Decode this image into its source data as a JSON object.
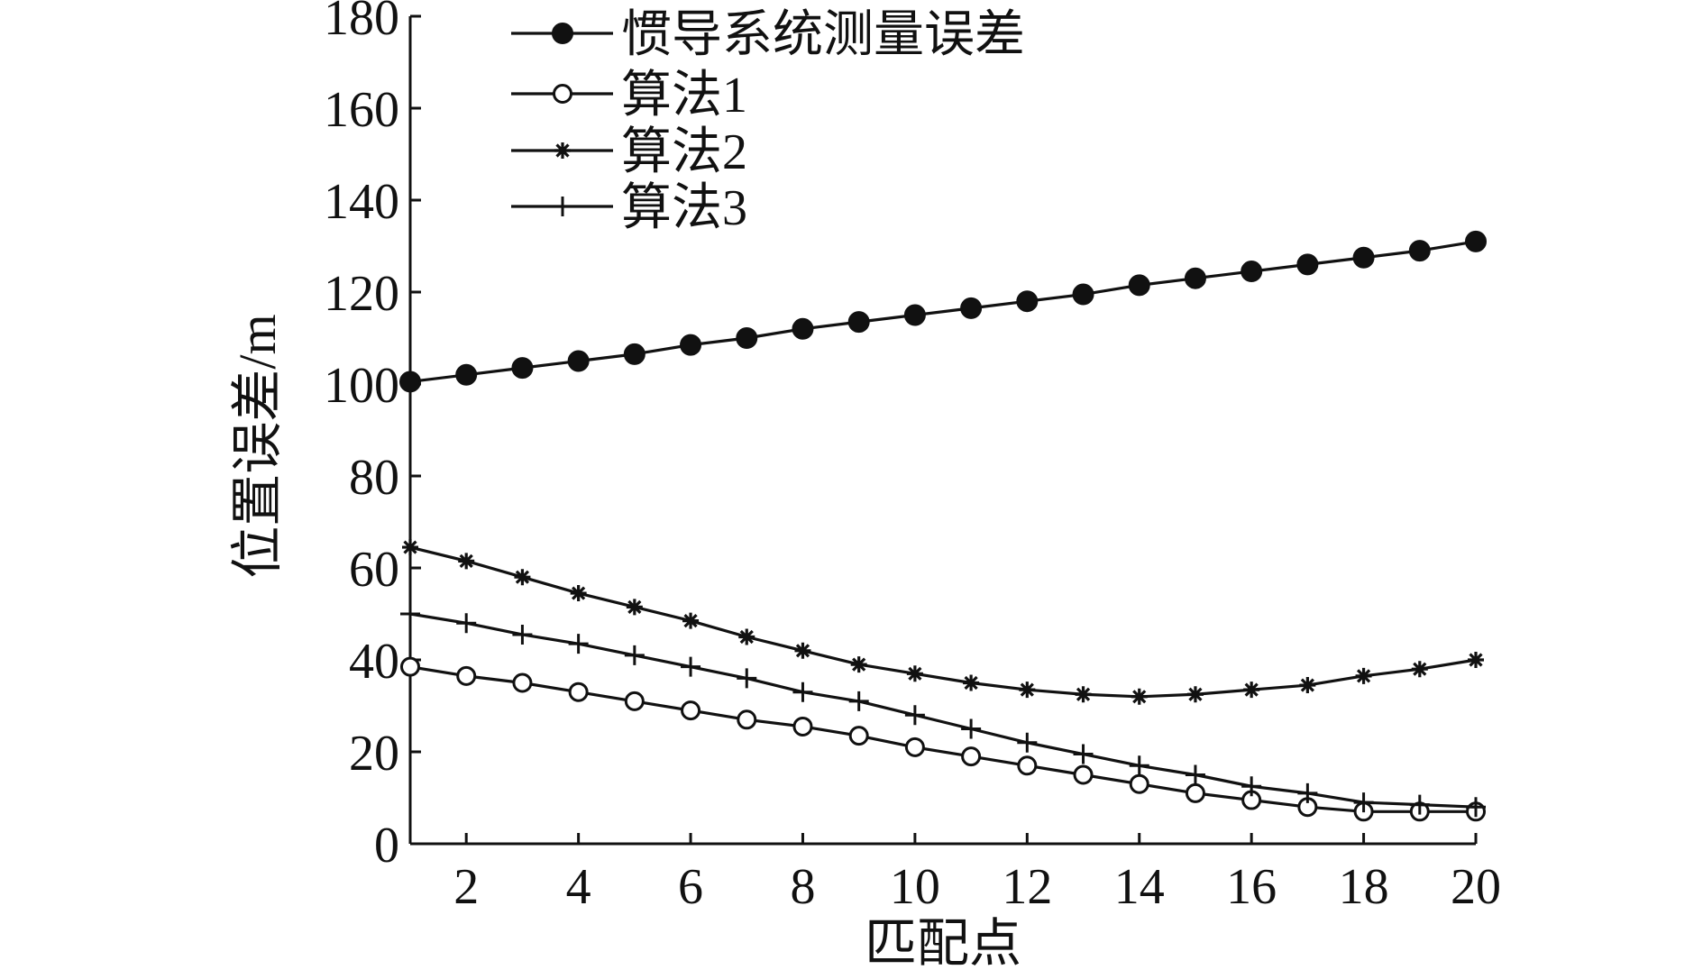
{
  "chart_data": {
    "type": "line",
    "xlabel": "匹配点",
    "ylabel": "位置误差/m",
    "xlim": [
      1,
      20
    ],
    "ylim": [
      0,
      180
    ],
    "xticks": [
      2,
      4,
      6,
      8,
      10,
      12,
      14,
      16,
      18,
      20
    ],
    "yticks": [
      0,
      20,
      40,
      60,
      80,
      100,
      120,
      140,
      160,
      180
    ],
    "x": [
      1,
      2,
      3,
      4,
      5,
      6,
      7,
      8,
      9,
      10,
      11,
      12,
      13,
      14,
      15,
      16,
      17,
      18,
      19,
      20
    ],
    "legend_position": "top-left",
    "series": [
      {
        "name": "惯导系统测量误差",
        "marker": "filled-circle",
        "values": [
          100.5,
          102.0,
          103.5,
          105.0,
          106.5,
          108.5,
          110.0,
          112.0,
          113.5,
          115.0,
          116.5,
          118.0,
          119.5,
          121.5,
          123.0,
          124.5,
          126.0,
          127.5,
          129.0,
          131.0
        ]
      },
      {
        "name": "算法1",
        "marker": "open-circle",
        "values": [
          38.5,
          36.5,
          35.0,
          33.0,
          31.0,
          29.0,
          27.0,
          25.5,
          23.5,
          21.0,
          19.0,
          17.0,
          15.0,
          13.0,
          11.0,
          9.5,
          8.0,
          7.0,
          7.0,
          7.0
        ]
      },
      {
        "name": "算法2",
        "marker": "star",
        "values": [
          64.5,
          61.5,
          58.0,
          54.5,
          51.5,
          48.5,
          45.0,
          42.0,
          39.0,
          37.0,
          35.0,
          33.5,
          32.5,
          32.0,
          32.5,
          33.5,
          34.5,
          36.5,
          38.0,
          40.0
        ]
      },
      {
        "name": "算法3",
        "marker": "plus",
        "values": [
          50.0,
          48.0,
          45.5,
          43.5,
          41.0,
          38.5,
          36.0,
          33.0,
          31.0,
          28.0,
          25.0,
          22.0,
          19.5,
          17.0,
          15.0,
          12.5,
          11.0,
          9.0,
          8.5,
          8.0
        ]
      }
    ]
  }
}
